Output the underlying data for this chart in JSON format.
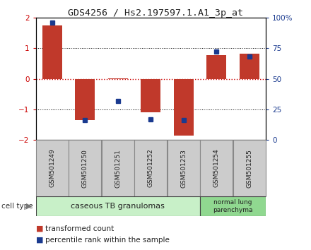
{
  "title": "GDS4256 / Hs2.197597.1.A1_3p_at",
  "samples": [
    "GSM501249",
    "GSM501250",
    "GSM501251",
    "GSM501252",
    "GSM501253",
    "GSM501254",
    "GSM501255"
  ],
  "transformed_counts": [
    1.75,
    -1.35,
    0.02,
    -1.1,
    -1.85,
    0.78,
    0.82
  ],
  "percentile_ranks": [
    96,
    16,
    32,
    17,
    16,
    72,
    68
  ],
  "bar_color": "#c0392b",
  "dot_color": "#1a3a8f",
  "ylim": [
    -2,
    2
  ],
  "y2lim": [
    0,
    100
  ],
  "yticks": [
    -2,
    -1,
    0,
    1,
    2
  ],
  "y2ticks": [
    0,
    25,
    50,
    75,
    100
  ],
  "y2ticklabels": [
    "0",
    "25",
    "50",
    "75",
    "100%"
  ],
  "zero_line_color": "#cc0000",
  "grid_color": "#000000",
  "groups": [
    {
      "label": "caseous TB granulomas",
      "samples_range": [
        0,
        4
      ],
      "color": "#c8f0c8"
    },
    {
      "label": "normal lung\nparenchyma",
      "samples_range": [
        5,
        6
      ],
      "color": "#90d890"
    }
  ],
  "cell_type_label": "cell type",
  "legend": [
    {
      "label": "transformed count",
      "color": "#c0392b"
    },
    {
      "label": "percentile rank within the sample",
      "color": "#1a3a8f"
    }
  ],
  "bar_width": 0.6,
  "background_color": "#ffffff",
  "plot_bg": "#ffffff",
  "label_box_color": "#cccccc",
  "label_box_edge": "#888888"
}
